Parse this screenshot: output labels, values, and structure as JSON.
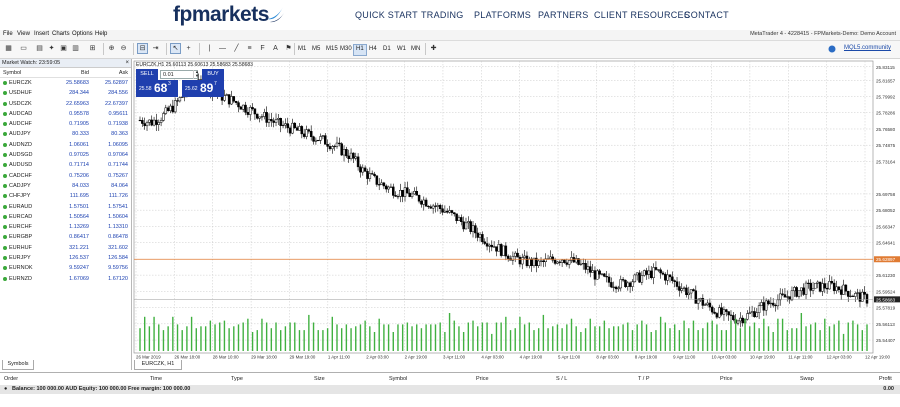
{
  "nav": {
    "logo": "fpmarkets",
    "links": [
      "QUICK START",
      "TRADING",
      "PLATFORMS",
      "PARTNERS",
      "CLIENT RESOURCES",
      "CONTACT"
    ]
  },
  "menu": {
    "items": [
      "File",
      "View",
      "Insert",
      "Charts",
      "Options",
      "Help"
    ],
    "window_title": "MetaTrader 4 - 4228415 - FPMarkets-Demo: Demo Account"
  },
  "toolbar": {
    "timeframes": [
      "M1",
      "M5",
      "M15",
      "M30",
      "H1",
      "H4",
      "D1",
      "W1",
      "MN"
    ],
    "active_timeframe": "H1",
    "mql_link": "MQL5.community"
  },
  "market_watch": {
    "title": "Market Watch: 23:59:05",
    "close": "×",
    "columns": {
      "symbol": "Symbol",
      "bid": "Bid",
      "ask": "Ask"
    },
    "rows": [
      {
        "symbol": "EURCZK",
        "bid": "25.58683",
        "ask": "25.62897"
      },
      {
        "symbol": "USDHUF",
        "bid": "284.344",
        "ask": "284.556"
      },
      {
        "symbol": "USDCZK",
        "bid": "22.65963",
        "ask": "22.67397"
      },
      {
        "symbol": "AUDCAD",
        "bid": "0.95578",
        "ask": "0.95611"
      },
      {
        "symbol": "AUDCHF",
        "bid": "0.71905",
        "ask": "0.71938"
      },
      {
        "symbol": "AUDJPY",
        "bid": "80.333",
        "ask": "80.363"
      },
      {
        "symbol": "AUDNZD",
        "bid": "1.06061",
        "ask": "1.06095"
      },
      {
        "symbol": "AUDSGD",
        "bid": "0.97025",
        "ask": "0.97064"
      },
      {
        "symbol": "AUDUSD",
        "bid": "0.71714",
        "ask": "0.71744"
      },
      {
        "symbol": "CADCHF",
        "bid": "0.75206",
        "ask": "0.75267"
      },
      {
        "symbol": "CADJPY",
        "bid": "84.033",
        "ask": "84.064"
      },
      {
        "symbol": "CHFJPY",
        "bid": "111.695",
        "ask": "111.726"
      },
      {
        "symbol": "EURAUD",
        "bid": "1.57501",
        "ask": "1.57541"
      },
      {
        "symbol": "EURCAD",
        "bid": "1.50564",
        "ask": "1.50604"
      },
      {
        "symbol": "EURCHF",
        "bid": "1.13269",
        "ask": "1.13310"
      },
      {
        "symbol": "EURGBP",
        "bid": "0.86417",
        "ask": "0.86478"
      },
      {
        "symbol": "EURHUF",
        "bid": "321.221",
        "ask": "321.602"
      },
      {
        "symbol": "EURJPY",
        "bid": "126.537",
        "ask": "126.584"
      },
      {
        "symbol": "EURNOK",
        "bid": "9.59247",
        "ask": "9.59756"
      },
      {
        "symbol": "EURNZD",
        "bid": "1.67069",
        "ask": "1.67120"
      }
    ],
    "tab": "Symbols"
  },
  "chart": {
    "header": "EURCZK,H1  25.60113 25.60613 25.58683 25.58683",
    "tab": "EURCZK, H1",
    "one_click": {
      "sell_label": "SELL",
      "buy_label": "BUY",
      "lots": "0.01",
      "sell_small": "25.58",
      "sell_big": "68",
      "sell_sup": "3",
      "buy_small": "25.62",
      "buy_big": "89",
      "buy_sup": "7"
    },
    "colors": {
      "grid": "#c9c9c9",
      "candle": "#000000",
      "volume": "#40b040",
      "bid_line": "#e07b33",
      "label_ask": "#e07b33",
      "label_bid": "#222222"
    }
  },
  "chart_data": {
    "type": "candlestick",
    "symbol": "EURCZK",
    "timeframe": "H1",
    "y_ticks": [
      "25.83115",
      "25.81657",
      "25.79992",
      "25.78286",
      "25.76580",
      "25.74875",
      "25.73164",
      "25.69758",
      "25.68052",
      "25.66347",
      "25.64641",
      "25.62897",
      "25.61230",
      "25.59524",
      "25.58683",
      "25.57819",
      "25.56113",
      "25.54407"
    ],
    "ylim": [
      25.541,
      25.833
    ],
    "ask_price": 25.62897,
    "bid_price": 25.58683,
    "x_ticks": [
      "26 Mar 2019",
      "26 Mar 18:00",
      "28 Mar 10:00",
      "29 Mar 18:00",
      "29 Mar 19:00",
      "1 Apr 11:00",
      "2 Apr 03:00",
      "2 Apr 19:00",
      "3 Apr 11:00",
      "4 Apr 03:00",
      "4 Apr 19:00",
      "5 Apr 11:00",
      "8 Apr 03:00",
      "8 Apr 19:00",
      "9 Apr 11:00",
      "10 Apr 03:00",
      "10 Apr 19:00",
      "11 Apr 11:00",
      "12 Apr 03:00",
      "12 Apr 19:00"
    ],
    "close_series": [
      25.775,
      25.773,
      25.78,
      25.791,
      25.806,
      25.812,
      25.808,
      25.8,
      25.795,
      25.788,
      25.782,
      25.776,
      25.77,
      25.766,
      25.761,
      25.757,
      25.752,
      25.745,
      25.737,
      25.722,
      25.712,
      25.705,
      25.7,
      25.697,
      25.692,
      25.686,
      25.68,
      25.672,
      25.663,
      25.654,
      25.645,
      25.637,
      25.63,
      25.626,
      25.624,
      25.628,
      25.63,
      25.626,
      25.62,
      25.611,
      25.605,
      25.603,
      25.607,
      25.612,
      25.616,
      25.61,
      25.601,
      25.592,
      25.583,
      25.575,
      25.569,
      25.566,
      25.571,
      25.579,
      25.585,
      25.589,
      25.595,
      25.599,
      25.6,
      25.601,
      25.597,
      25.591,
      25.587
    ],
    "volume_series": [
      12,
      14,
      10,
      16,
      13,
      11,
      9,
      15,
      12,
      10,
      13,
      14,
      9,
      11,
      12,
      16,
      10,
      12,
      14,
      11,
      13,
      10,
      12,
      15,
      9,
      11,
      13,
      12,
      10,
      14,
      11,
      9,
      12,
      13,
      10,
      11,
      15,
      12,
      9,
      10,
      12,
      14,
      11,
      10,
      13,
      12,
      9,
      11,
      14,
      12,
      10,
      13,
      11,
      12,
      9,
      14,
      10,
      12,
      11,
      13,
      12,
      10,
      11
    ]
  },
  "terminal": {
    "columns": [
      "Order",
      "Time",
      "Type",
      "Size",
      "Symbol",
      "Price",
      "S / L",
      "T / P",
      "Price",
      "Swap",
      "Profit"
    ],
    "balance": "Balance: 100 000.00 AUD  Equity: 100 000.00  Free margin: 100 000.00",
    "profit": "0.00"
  }
}
